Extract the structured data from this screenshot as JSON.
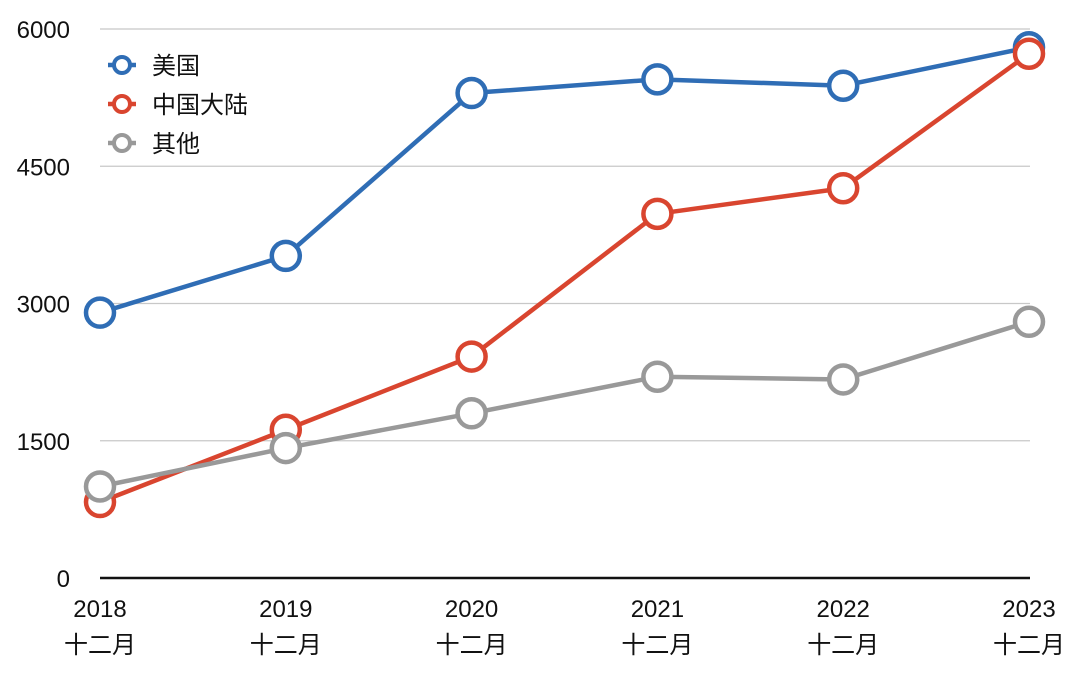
{
  "chart_data": {
    "type": "line",
    "categories": [
      [
        "2018",
        "十二月"
      ],
      [
        "2019",
        "十二月"
      ],
      [
        "2020",
        "十二月"
      ],
      [
        "2021",
        "十二月"
      ],
      [
        "2022",
        "十二月"
      ],
      [
        "2023",
        "十二月"
      ]
    ],
    "series": [
      {
        "name": "美国",
        "color": "#2f6db5",
        "values": [
          2900,
          3520,
          5300,
          5450,
          5380,
          5800
        ]
      },
      {
        "name": "中国大陆",
        "color": "#d9452f",
        "values": [
          830,
          1620,
          2420,
          3980,
          4260,
          5730
        ]
      },
      {
        "name": "其他",
        "color": "#999999",
        "values": [
          1000,
          1420,
          1800,
          2200,
          2170,
          2800
        ]
      }
    ],
    "yticks": [
      0,
      1500,
      3000,
      4500,
      6000
    ],
    "ylim": [
      0,
      6000
    ],
    "grid": true,
    "legend_position": "top-left",
    "title": "",
    "xlabel": "",
    "ylabel": ""
  }
}
